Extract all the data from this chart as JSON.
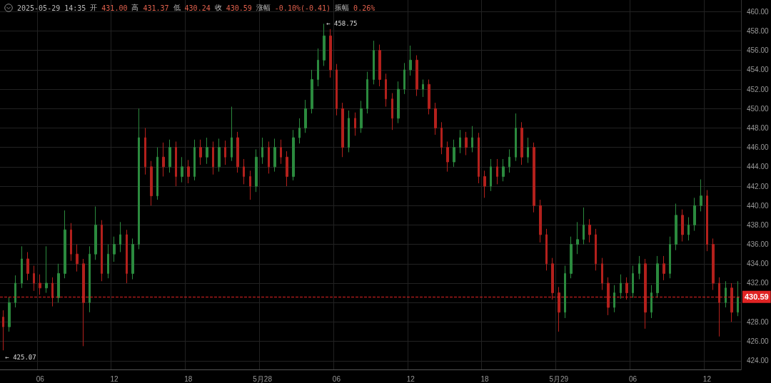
{
  "chart_data": {
    "type": "candlestick",
    "annotations": [
      "← 458.75",
      "← 425.07",
      "2025-05-29 14:35",
      "开",
      "431.00",
      "高",
      "431.37",
      "低",
      "430.24",
      "收",
      "430.59",
      "涨幅",
      "-0.10%(-0.41)",
      "振幅",
      "0.26%"
    ],
    "categories": [
      null,
      null,
      null,
      null,
      null,
      null,
      "06",
      null,
      null,
      null,
      null,
      null,
      null,
      null,
      null,
      null,
      null,
      null,
      "12",
      null,
      null,
      null,
      null,
      null,
      null,
      null,
      null,
      null,
      null,
      null,
      "18",
      null,
      null,
      null,
      null,
      null,
      null,
      null,
      null,
      null,
      null,
      null,
      "5月28",
      null,
      null,
      null,
      null,
      null,
      null,
      null,
      null,
      null,
      null,
      null,
      "06",
      null,
      null,
      null,
      null,
      null,
      null,
      null,
      null,
      null,
      null,
      null,
      "12",
      null,
      null,
      null,
      null,
      null,
      null,
      null,
      null,
      null,
      null,
      null,
      "18",
      null,
      null,
      null,
      null,
      null,
      null,
      null,
      null,
      null,
      null,
      null,
      "5月29",
      null,
      null,
      null,
      null,
      null,
      null,
      null,
      null,
      null,
      null,
      null,
      "06",
      null,
      null,
      null,
      null,
      null,
      null,
      null,
      null,
      null,
      null,
      null,
      "12",
      null,
      null,
      null,
      null,
      null
    ],
    "ohlc": [
      [
        428.5,
        429.2,
        425.07,
        427.5
      ],
      [
        427.5,
        430.6,
        427.0,
        430
      ],
      [
        430,
        432.8,
        429.5,
        432
      ],
      [
        432,
        435.8,
        431.5,
        434.5
      ],
      [
        434.5,
        435.2,
        432.3,
        433
      ],
      [
        433,
        433.8,
        431.2,
        432
      ],
      [
        432,
        432.9,
        430.8,
        431.5
      ],
      [
        431.5,
        435.8,
        431,
        432
      ],
      [
        432,
        432.6,
        429.6,
        430.5
      ],
      [
        430.5,
        434,
        430,
        433
      ],
      [
        433,
        439.5,
        432.5,
        437.5
      ],
      [
        437.5,
        438.2,
        434.3,
        435
      ],
      [
        435,
        436,
        433.2,
        434
      ],
      [
        434,
        434.5,
        425.5,
        430
      ],
      [
        430,
        435.8,
        429,
        435
      ],
      [
        435,
        439.9,
        434.4,
        438
      ],
      [
        438,
        438.5,
        432.2,
        433
      ],
      [
        433,
        436,
        432.5,
        435
      ],
      [
        435,
        436.8,
        434.2,
        436
      ],
      [
        436,
        438.3,
        435.2,
        437
      ],
      [
        437,
        437.5,
        432,
        433
      ],
      [
        433,
        436.6,
        432.4,
        436
      ],
      [
        436,
        450,
        435.5,
        447
      ],
      [
        447,
        448,
        443.2,
        444
      ],
      [
        444,
        444.6,
        440,
        441
      ],
      [
        441,
        446,
        440.6,
        445
      ],
      [
        445,
        446.5,
        443,
        444
      ],
      [
        444,
        446.8,
        443.4,
        446
      ],
      [
        446,
        446.6,
        442,
        443
      ],
      [
        443,
        445,
        442.4,
        444
      ],
      [
        444,
        444.7,
        442.3,
        443
      ],
      [
        443,
        446.8,
        442.6,
        446
      ],
      [
        446,
        446.8,
        444.2,
        445
      ],
      [
        445,
        447,
        444.3,
        446
      ],
      [
        446,
        446.6,
        443.2,
        444
      ],
      [
        444,
        446.9,
        443.5,
        446
      ],
      [
        446,
        446.7,
        444.2,
        445
      ],
      [
        445,
        450.2,
        444.6,
        447
      ],
      [
        447,
        447.6,
        443.4,
        444
      ],
      [
        444,
        444.8,
        442.2,
        443
      ],
      [
        443,
        443.6,
        440.6,
        442
      ],
      [
        442,
        445.8,
        441.4,
        445
      ],
      [
        445,
        447,
        444.3,
        446
      ],
      [
        446,
        446.6,
        443.3,
        444
      ],
      [
        444,
        446.9,
        443.5,
        446
      ],
      [
        446,
        446.8,
        444.3,
        445
      ],
      [
        445,
        445.6,
        442,
        443
      ],
      [
        443,
        447.8,
        442.6,
        447
      ],
      [
        447,
        449,
        446.4,
        448
      ],
      [
        448,
        450.9,
        447.5,
        450
      ],
      [
        450,
        454,
        449.5,
        453
      ],
      [
        453,
        456.2,
        452.3,
        455
      ],
      [
        455,
        458.75,
        454.4,
        457.5
      ],
      [
        457.5,
        458.2,
        453.2,
        454
      ],
      [
        454,
        454.6,
        449.3,
        450
      ],
      [
        450,
        450.6,
        445,
        446
      ],
      [
        446,
        449.8,
        445.5,
        449
      ],
      [
        449,
        449.6,
        447.2,
        448
      ],
      [
        448,
        450.8,
        447.5,
        450
      ],
      [
        450,
        453.8,
        449.5,
        453
      ],
      [
        453,
        457,
        452.5,
        456
      ],
      [
        456,
        456.6,
        452.3,
        453
      ],
      [
        453,
        453.6,
        450.2,
        451
      ],
      [
        451,
        451.6,
        447.8,
        449
      ],
      [
        449,
        452.8,
        448.5,
        452
      ],
      [
        452,
        454.7,
        451.5,
        454
      ],
      [
        454,
        456.5,
        453.4,
        455
      ],
      [
        455,
        455.5,
        451.3,
        452
      ],
      [
        452,
        453,
        451.2,
        452.5
      ],
      [
        452.5,
        453,
        449.4,
        450
      ],
      [
        450,
        450.6,
        447.3,
        448
      ],
      [
        448,
        448.6,
        445.3,
        446
      ],
      [
        446,
        446.6,
        443.5,
        444.5
      ],
      [
        444.5,
        446.8,
        444,
        446
      ],
      [
        446,
        447.8,
        445.4,
        447
      ],
      [
        447,
        447.6,
        445.2,
        446
      ],
      [
        446,
        448.2,
        445.5,
        447
      ],
      [
        447,
        447.5,
        442.3,
        443
      ],
      [
        443,
        443.6,
        440.8,
        442
      ],
      [
        442,
        444.8,
        441.5,
        444
      ],
      [
        444,
        444.8,
        442.2,
        443
      ],
      [
        443,
        444.8,
        442.5,
        444
      ],
      [
        444,
        445.8,
        443.4,
        445
      ],
      [
        445,
        449.5,
        444.6,
        448
      ],
      [
        448,
        448.6,
        444.2,
        445
      ],
      [
        445,
        447,
        444.4,
        446
      ],
      [
        446,
        446.5,
        439.3,
        440
      ],
      [
        440,
        440.6,
        436.2,
        437
      ],
      [
        437,
        437.6,
        433.3,
        434
      ],
      [
        434,
        434.6,
        430.3,
        431
      ],
      [
        431,
        431.6,
        427,
        429
      ],
      [
        429,
        433.8,
        428.4,
        433
      ],
      [
        433,
        436.8,
        432.5,
        436
      ],
      [
        436,
        438.3,
        435,
        436.5
      ],
      [
        436.5,
        439.8,
        436,
        438
      ],
      [
        438,
        438.6,
        436.2,
        437
      ],
      [
        437,
        437.6,
        433.3,
        434
      ],
      [
        434,
        434.6,
        431.3,
        432
      ],
      [
        432,
        432.6,
        428.7,
        429.5
      ],
      [
        429.5,
        431.8,
        429,
        431
      ],
      [
        431,
        432.9,
        430.4,
        432
      ],
      [
        432,
        432.6,
        430.3,
        431
      ],
      [
        431,
        433.8,
        430.5,
        433
      ],
      [
        433,
        434.8,
        432.4,
        434
      ],
      [
        434,
        434.5,
        427.3,
        429
      ],
      [
        429,
        431.8,
        428.4,
        431
      ],
      [
        431,
        434.8,
        430.5,
        434
      ],
      [
        434,
        434.8,
        432.3,
        433
      ],
      [
        433,
        436.8,
        432.5,
        436
      ],
      [
        436,
        440.2,
        435.4,
        439
      ],
      [
        439,
        439.6,
        436.3,
        437
      ],
      [
        437,
        438.8,
        436.4,
        438
      ],
      [
        438,
        440.8,
        437.4,
        440
      ],
      [
        440,
        442.7,
        439.4,
        441
      ],
      [
        441,
        441.6,
        435.3,
        436
      ],
      [
        436,
        436.6,
        431.3,
        432
      ],
      [
        432,
        432.6,
        426.5,
        430
      ],
      [
        430,
        432.2,
        429.5,
        431.5
      ],
      [
        431.5,
        432,
        428,
        429
      ],
      [
        429,
        432.2,
        428.6,
        430.59
      ]
    ],
    "ylim": [
      423.1,
      461.2
    ],
    "yticks": [
      {
        "value": 424,
        "label": "424.00"
      },
      {
        "value": 426,
        "label": "426.00"
      },
      {
        "value": 428,
        "label": "428.00"
      },
      {
        "value": 430,
        "label": null
      },
      {
        "value": 432,
        "label": "432.00"
      },
      {
        "value": 434,
        "label": "434.00"
      },
      {
        "value": 436,
        "label": "436.00"
      },
      {
        "value": 438,
        "label": "438.00"
      },
      {
        "value": 440,
        "label": "440.00"
      },
      {
        "value": 442,
        "label": "442.00"
      },
      {
        "value": 444,
        "label": "444.00"
      },
      {
        "value": 446,
        "label": "446.00"
      },
      {
        "value": 448,
        "label": "448.00"
      },
      {
        "value": 450,
        "label": "450.00"
      },
      {
        "value": 452,
        "label": "452.00"
      },
      {
        "value": 454,
        "label": "454.00"
      },
      {
        "value": 456,
        "label": "456.00"
      },
      {
        "value": 458,
        "label": "458.00"
      },
      {
        "value": 460,
        "label": "460.00"
      }
    ],
    "ref_lines": [
      {
        "axis": "y",
        "value": 430.59,
        "label": "430.59",
        "color": "#e02424",
        "line_style": "dashed"
      }
    ],
    "grid": true
  }
}
